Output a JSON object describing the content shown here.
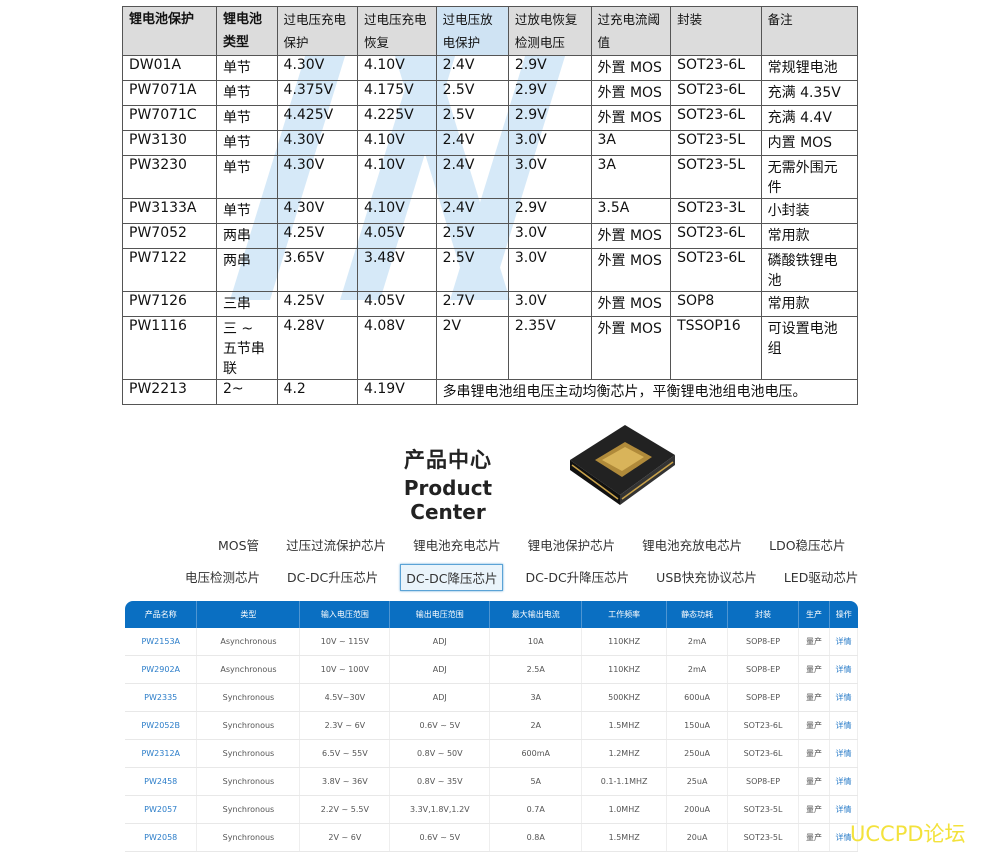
{
  "battery_table": {
    "headers": [
      "锂电池保护",
      "锂电池类型",
      "过电压充电保护",
      "过电压充电恢复",
      "过电压放电保护",
      "过放电恢复检测电压",
      "过充电流阈值",
      "封装",
      "备注"
    ],
    "rows": [
      [
        "DW01A",
        "单节",
        "4.30V",
        "4.10V",
        "2.4V",
        "2.9V",
        "外置 MOS",
        "SOT23-6L",
        "常规锂电池"
      ],
      [
        "PW7071A",
        "单节",
        "4.375V",
        "4.175V",
        "2.5V",
        "2.9V",
        "外置 MOS",
        "SOT23-6L",
        "充满 4.35V"
      ],
      [
        "PW7071C",
        "单节",
        "4.425V",
        "4.225V",
        "2.5V",
        "2.9V",
        "外置 MOS",
        "SOT23-6L",
        "充满 4.4V"
      ],
      [
        "PW3130",
        "单节",
        "4.30V",
        "4.10V",
        "2.4V",
        "3.0V",
        "3A",
        "SOT23-5L",
        "内置 MOS"
      ],
      [
        "PW3230",
        "单节",
        "4.30V",
        "4.10V",
        "2.4V",
        "3.0V",
        "3A",
        "SOT23-5L",
        "无需外围元件"
      ],
      [
        "PW3133A",
        "单节",
        "4.30V",
        "4.10V",
        "2.4V",
        "2.9V",
        "3.5A",
        "SOT23-3L",
        "小封装"
      ],
      [
        "PW7052",
        "两串",
        "4.25V",
        "4.05V",
        "2.5V",
        "3.0V",
        "外置 MOS",
        "SOT23-6L",
        "常用款"
      ],
      [
        "PW7122",
        "两串",
        "3.65V",
        "3.48V",
        "2.5V",
        "3.0V",
        "外置 MOS",
        "SOT23-6L",
        "磷酸铁锂电池"
      ],
      [
        "PW7126",
        "三串",
        "4.25V",
        "4.05V",
        "2.7V",
        "3.0V",
        "外置 MOS",
        "SOP8",
        "常用款"
      ],
      [
        "PW1116",
        "三 ~ 五节串联",
        "4.28V",
        "4.08V",
        "2V",
        "2.35V",
        "外置 MOS",
        "TSSOP16",
        "可设置电池组"
      ]
    ],
    "last_row": [
      "PW2213",
      "2~",
      "4.2",
      "4.19V",
      "多串锂电池组电压主动均衡芯片，平衡锂电池组电池电压。"
    ]
  },
  "product_center": {
    "title_cn": "产品中心",
    "title_en": "Product Center",
    "categories_row1": [
      "MOS管",
      "过压过流保护芯片",
      "锂电池充电芯片",
      "锂电池保护芯片",
      "锂电池充放电芯片",
      "LDO稳压芯片"
    ],
    "categories_row2": [
      "电压检测芯片",
      "DC-DC升压芯片",
      "DC-DC降压芯片",
      "DC-DC升降压芯片",
      "USB快充协议芯片",
      "LED驱动芯片"
    ],
    "selected_category": "DC-DC降压芯片"
  },
  "product_table": {
    "headers": [
      "产品名称",
      "类型",
      "输入电压范围",
      "输出电压范围",
      "最大输出电流",
      "工作频率",
      "静态功耗",
      "封装",
      "生产",
      "操作"
    ],
    "rows": [
      [
        "PW2153A",
        "Asynchronous",
        "10V ~ 115V",
        "ADJ",
        "10A",
        "110KHZ",
        "2mA",
        "SOP8-EP",
        "量产",
        "详情"
      ],
      [
        "PW2902A",
        "Asynchronous",
        "10V ~ 100V",
        "ADJ",
        "2.5A",
        "110KHZ",
        "2mA",
        "SOP8-EP",
        "量产",
        "详情"
      ],
      [
        "PW2335",
        "Synchronous",
        "4.5V~30V",
        "ADJ",
        "3A",
        "500KHZ",
        "600uA",
        "SOP8-EP",
        "量产",
        "详情"
      ],
      [
        "PW2052B",
        "Synchronous",
        "2.3V ~ 6V",
        "0.6V ~ 5V",
        "2A",
        "1.5MHZ",
        "150uA",
        "SOT23-6L",
        "量产",
        "详情"
      ],
      [
        "PW2312A",
        "Synchronous",
        "6.5V ~ 55V",
        "0.8V ~ 50V",
        "600mA",
        "1.2MHZ",
        "250uA",
        "SOT23-6L",
        "量产",
        "详情"
      ],
      [
        "PW2458",
        "Synchronous",
        "3.8V ~ 36V",
        "0.8V ~ 35V",
        "5A",
        "0.1-1.1MHZ",
        "25uA",
        "SOP8-EP",
        "量产",
        "详情"
      ],
      [
        "PW2057",
        "Synchronous",
        "2.2V ~ 5.5V",
        "3.3V,1.8V,1.2V",
        "0.7A",
        "1.0MHZ",
        "200uA",
        "SOT23-5L",
        "量产",
        "详情"
      ],
      [
        "PW2058",
        "Synchronous",
        "2V ~ 6V",
        "0.6V ~ 5V",
        "0.8A",
        "1.5MHZ",
        "20uA",
        "SOT23-5L",
        "量产",
        "详情"
      ]
    ]
  },
  "watermark": "UCCPD论坛",
  "colors": {
    "header_blue": "#0a6fc2",
    "link_blue": "#2b7dc9",
    "watermark_yellow": "#f3e23c"
  }
}
